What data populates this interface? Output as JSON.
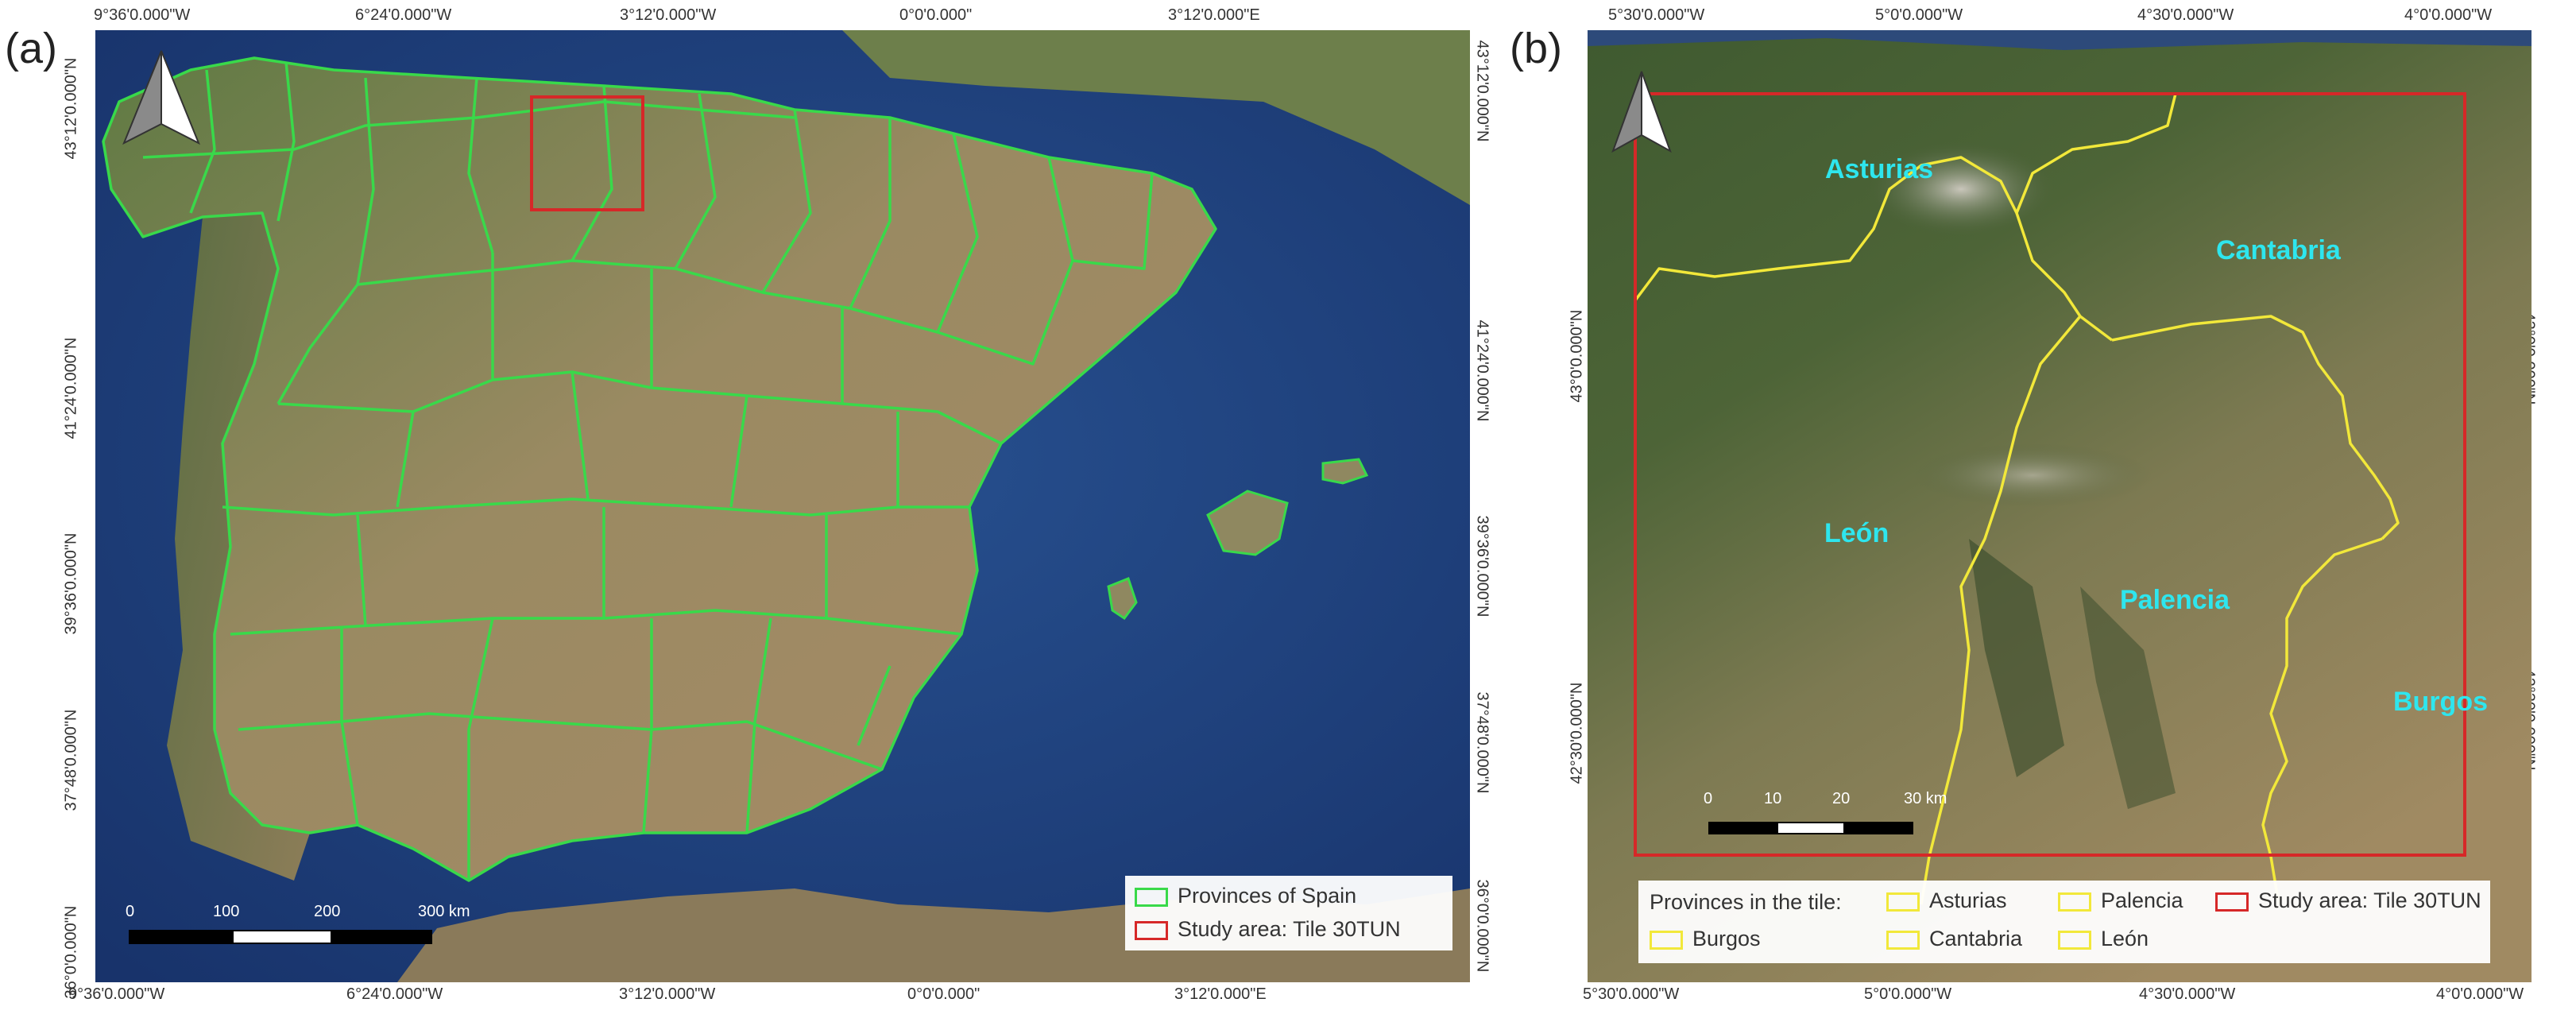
{
  "panel_a": {
    "letter": "(a)",
    "top_lon": [
      "9°36'0.000\"W",
      "6°24'0.000\"W",
      "3°12'0.000\"W",
      "0°0'0.000\"",
      "3°12'0.000\"E"
    ],
    "bottom_lon": [
      "9°36'0.000\"W",
      "6°24'0.000\"W",
      "3°12'0.000\"W",
      "0°0'0.000\"",
      "3°12'0.000\"E"
    ],
    "lat": [
      "43°12'0.000\"N",
      "41°24'0.000\"N",
      "39°36'0.000\"N",
      "37°48'0.000\"N",
      "36°0'0.000\"N"
    ],
    "scale": [
      "0",
      "100",
      "200",
      "300 km"
    ],
    "legend": [
      {
        "label": "Provinces of Spain",
        "color": "#39d94a"
      },
      {
        "label": "Study area: Tile 30TUN",
        "color": "#d62828"
      }
    ]
  },
  "panel_b": {
    "letter": "(b)",
    "top_lon": [
      "5°30'0.000\"W",
      "5°0'0.000\"W",
      "4°30'0.000\"W",
      "4°0'0.000\"W"
    ],
    "bottom_lon": [
      "5°30'0.000\"W",
      "5°0'0.000\"W",
      "4°30'0.000\"W",
      "4°0'0.000\"W"
    ],
    "lat": [
      "43°0'0.000\"N",
      "42°30'0.000\"N"
    ],
    "scale": [
      "0",
      "10",
      "20",
      "30 km"
    ],
    "provinces": [
      "Asturias",
      "Cantabria",
      "León",
      "Palencia",
      "Burgos"
    ],
    "legend_title": "Provinces in the tile:",
    "legend": [
      {
        "label": "Asturias",
        "color": "#f2e83a"
      },
      {
        "label": "Palencia",
        "color": "#f2e83a"
      },
      {
        "label": "Study area: Tile 30TUN",
        "color": "#d62828"
      },
      {
        "label": "Burgos",
        "color": "#f2e83a"
      },
      {
        "label": "Cantabria",
        "color": "#f2e83a"
      },
      {
        "label": "León",
        "color": "#f2e83a"
      }
    ]
  }
}
